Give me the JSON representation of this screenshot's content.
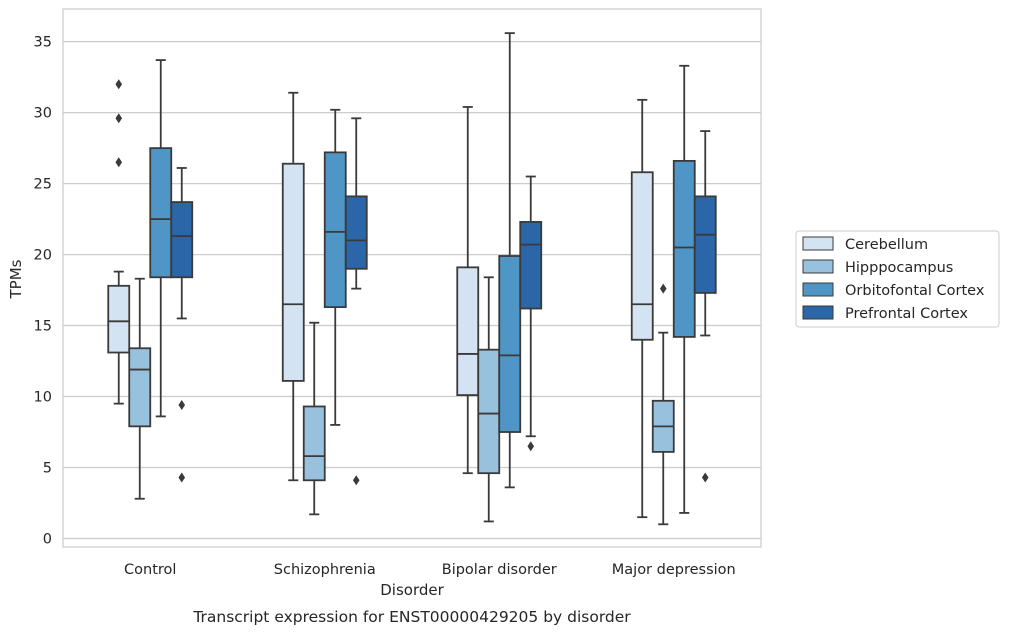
{
  "chart_data": {
    "type": "box",
    "title": "",
    "caption": "Transcript expression for ENST00000429205 by disorder",
    "xlabel": "Disorder",
    "ylabel": "TPMs",
    "ylim": [
      -0.6,
      37.3
    ],
    "yticks": [
      0,
      5,
      10,
      15,
      20,
      25,
      30,
      35
    ],
    "grid": "horizontal",
    "legend_position": "right",
    "categories": [
      "Control",
      "Schizophrenia",
      "Bipolar disorder",
      "Major depression"
    ],
    "series": [
      {
        "name": "Cerebellum",
        "color": "#d4e3f1",
        "boxes": [
          {
            "whisker_low": 9.5,
            "q1": 13.1,
            "median": 15.3,
            "q3": 17.8,
            "whisker_high": 18.8,
            "outliers": [
              26.5,
              29.6,
              32.0
            ]
          },
          {
            "whisker_low": 4.1,
            "q1": 11.1,
            "median": 16.5,
            "q3": 26.4,
            "whisker_high": 31.4,
            "outliers": []
          },
          {
            "whisker_low": 4.6,
            "q1": 10.1,
            "median": 13.0,
            "q3": 19.1,
            "whisker_high": 30.4,
            "outliers": []
          },
          {
            "whisker_low": 1.5,
            "q1": 14.0,
            "median": 16.5,
            "q3": 25.8,
            "whisker_high": 30.9,
            "outliers": []
          }
        ]
      },
      {
        "name": "Hipppocampus",
        "color": "#98c1dd",
        "boxes": [
          {
            "whisker_low": 2.8,
            "q1": 7.9,
            "median": 11.9,
            "q3": 13.4,
            "whisker_high": 18.3,
            "outliers": []
          },
          {
            "whisker_low": 1.7,
            "q1": 4.1,
            "median": 5.8,
            "q3": 9.3,
            "whisker_high": 15.2,
            "outliers": []
          },
          {
            "whisker_low": 1.2,
            "q1": 4.6,
            "median": 8.8,
            "q3": 13.3,
            "whisker_high": 18.4,
            "outliers": []
          },
          {
            "whisker_low": 1.0,
            "q1": 6.1,
            "median": 7.9,
            "q3": 9.7,
            "whisker_high": 14.5,
            "outliers": [
              17.6
            ]
          }
        ]
      },
      {
        "name": "Orbitofontal Cortex",
        "color": "#4f95c5",
        "boxes": [
          {
            "whisker_low": 8.6,
            "q1": 18.4,
            "median": 22.5,
            "q3": 27.5,
            "whisker_high": 33.7,
            "outliers": []
          },
          {
            "whisker_low": 8.0,
            "q1": 16.3,
            "median": 21.6,
            "q3": 27.2,
            "whisker_high": 30.2,
            "outliers": []
          },
          {
            "whisker_low": 3.6,
            "q1": 7.5,
            "median": 12.9,
            "q3": 19.9,
            "whisker_high": 35.6,
            "outliers": []
          },
          {
            "whisker_low": 1.8,
            "q1": 14.2,
            "median": 20.5,
            "q3": 26.6,
            "whisker_high": 33.3,
            "outliers": []
          }
        ]
      },
      {
        "name": "Prefrontal Cortex",
        "color": "#2b66a8",
        "boxes": [
          {
            "whisker_low": 15.5,
            "q1": 18.4,
            "median": 21.3,
            "q3": 23.7,
            "whisker_high": 26.1,
            "outliers": [
              4.3,
              9.4
            ]
          },
          {
            "whisker_low": 17.6,
            "q1": 19.0,
            "median": 21.0,
            "q3": 24.1,
            "whisker_high": 29.6,
            "outliers": [
              4.1
            ]
          },
          {
            "whisker_low": 7.2,
            "q1": 16.2,
            "median": 20.7,
            "q3": 22.3,
            "whisker_high": 25.5,
            "outliers": [
              6.5
            ]
          },
          {
            "whisker_low": 14.3,
            "q1": 17.3,
            "median": 21.4,
            "q3": 24.1,
            "whisker_high": 28.7,
            "outliers": [
              4.3
            ]
          }
        ]
      }
    ]
  }
}
